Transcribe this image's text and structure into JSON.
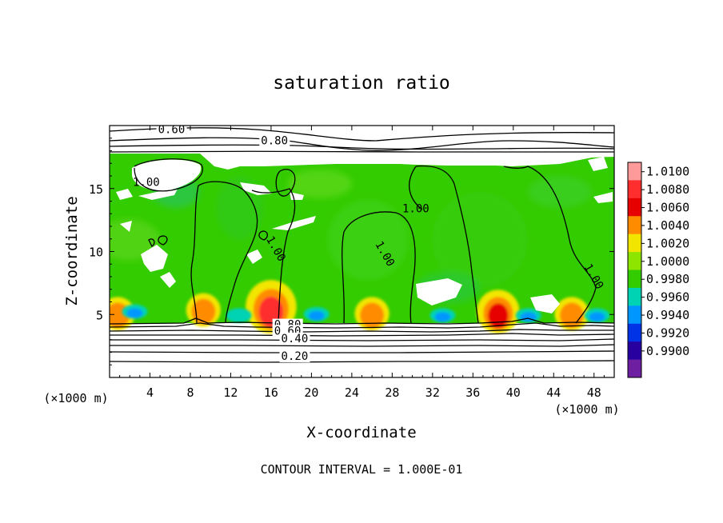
{
  "chart_data": {
    "type": "heatmap",
    "title": "saturation ratio",
    "xlabel": "X-coordinate",
    "ylabel": "Z-coordinate",
    "x_unit": "(×1000 m)",
    "y_unit": "(×1000 m)",
    "xlim": [
      0,
      50
    ],
    "ylim": [
      0,
      20
    ],
    "x_ticks": [
      4,
      8,
      12,
      16,
      20,
      24,
      28,
      32,
      36,
      40,
      44,
      48
    ],
    "y_ticks": [
      5,
      10,
      15
    ],
    "colorbar": {
      "levels": [
        "1.0100",
        "1.0080",
        "1.0060",
        "1.0040",
        "1.0020",
        "1.0000",
        "0.9980",
        "0.9960",
        "0.9940",
        "0.9920",
        "0.9900"
      ],
      "colors": [
        "#ff9a9a",
        "#ff2e2e",
        "#e60000",
        "#ff8c00",
        "#f2e600",
        "#8ee600",
        "#33cc00",
        "#00d2b4",
        "#0096ff",
        "#0032e6",
        "#2800a0",
        "#6e1ea0"
      ]
    },
    "contour_interval": "CONTOUR INTERVAL = 1.000E-01",
    "contour_labels": [
      {
        "text": "0.60",
        "x": 4.8,
        "y": 19.4
      },
      {
        "text": "0.80",
        "x": 15.0,
        "y": 18.5
      },
      {
        "text": "1.00",
        "x": 29.0,
        "y": 13.1
      },
      {
        "text": "1.00",
        "x": 26.3,
        "y": 10.6
      },
      {
        "text": "1.00",
        "x": 47.0,
        "y": 8.8
      },
      {
        "text": "1.00",
        "x": 15.5,
        "y": 11.0
      },
      {
        "text": "1.00",
        "x": 2.3,
        "y": 15.2
      },
      {
        "text": "0.80",
        "x": 16.3,
        "y": 3.9
      },
      {
        "text": "0.60",
        "x": 16.3,
        "y": 3.4
      },
      {
        "text": "0.40",
        "x": 17.0,
        "y": 2.8
      },
      {
        "text": "0.20",
        "x": 17.0,
        "y": 1.4
      }
    ],
    "cloud_free_top": 16.9,
    "cloud_base": 4.5,
    "hot_spots": [
      {
        "x": 16.0,
        "y": 5.2,
        "level": 1.008
      },
      {
        "x": 38.5,
        "y": 4.9,
        "level": 1.006
      },
      {
        "x": 45.8,
        "y": 4.8,
        "level": 1.004
      },
      {
        "x": 26.0,
        "y": 4.8,
        "level": 1.004
      },
      {
        "x": 9.3,
        "y": 5.1,
        "level": 1.004
      },
      {
        "x": 0.8,
        "y": 4.8,
        "level": 1.004
      }
    ],
    "cold_spots": [
      {
        "x": 20.5,
        "y": 4.9,
        "level": 0.994
      },
      {
        "x": 33.0,
        "y": 4.8,
        "level": 0.995
      },
      {
        "x": 41.5,
        "y": 4.8,
        "level": 0.994
      },
      {
        "x": 2.5,
        "y": 5.1,
        "level": 0.995
      },
      {
        "x": 48.3,
        "y": 4.8,
        "level": 0.994
      },
      {
        "x": 12.8,
        "y": 4.8,
        "level": 0.996
      }
    ]
  }
}
